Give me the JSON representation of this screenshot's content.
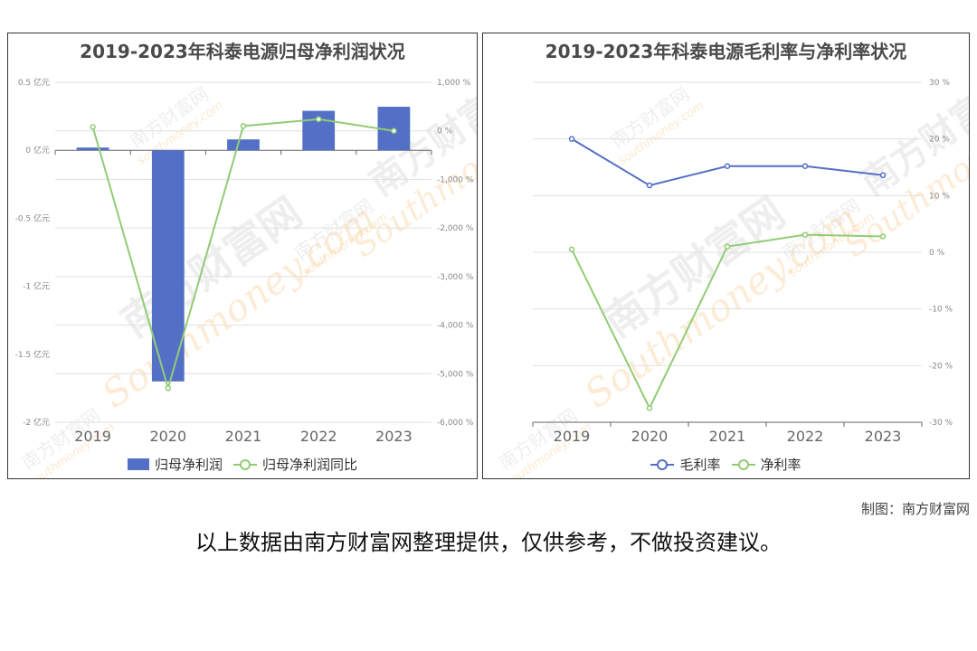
{
  "charts": [
    {
      "title": "2019-2023年科泰电源归母净利润状况",
      "legend": [
        {
          "label": "归母净利润",
          "kind": "bar",
          "color": "#5470c6"
        },
        {
          "label": "归母净利润同比",
          "kind": "line",
          "color": "#91cc75"
        }
      ]
    },
    {
      "title": "2019-2023年科泰电源毛利率与净利率状况",
      "legend": [
        {
          "label": "毛利率",
          "kind": "line",
          "color": "#5470c6"
        },
        {
          "label": "净利率",
          "kind": "line",
          "color": "#91cc75"
        }
      ]
    }
  ],
  "chart_data": [
    {
      "type": "bar",
      "title": "2019-2023年科泰电源归母净利润状况",
      "categories": [
        "2019",
        "2020",
        "2021",
        "2022",
        "2023"
      ],
      "series": [
        {
          "name": "归母净利润",
          "type": "bar",
          "axis": "left",
          "color": "#5470c6",
          "values": [
            0.02,
            -1.7,
            0.08,
            0.29,
            0.32
          ]
        },
        {
          "name": "归母净利润同比",
          "type": "line",
          "axis": "right",
          "color": "#91cc75",
          "values": [
            80,
            -5300,
            100,
            240,
            0
          ]
        }
      ],
      "y_left": {
        "min": -2,
        "max": 0.5,
        "ticks": [
          0.5,
          0,
          -0.5,
          -1,
          -1.5,
          -2
        ],
        "tick_labels": [
          "0.5 亿元",
          "0 亿元",
          "-0.5 亿元",
          "-1 亿元",
          "-1.5 亿元",
          "-2 亿元"
        ]
      },
      "y_right": {
        "min": -6000,
        "max": 1000,
        "ticks": [
          1000,
          0,
          -1000,
          -2000,
          -3000,
          -4000,
          -5000,
          -6000
        ],
        "tick_labels": [
          "1,000 %",
          "0 %",
          "-1,000 %",
          "-2,000 %",
          "-3,000 %",
          "-4,000 %",
          "-5,000 %",
          "-6,000 %"
        ]
      },
      "grid": true,
      "legend_position": "bottom"
    },
    {
      "type": "line",
      "title": "2019-2023年科泰电源毛利率与净利率状况",
      "categories": [
        "2019",
        "2020",
        "2021",
        "2022",
        "2023"
      ],
      "series": [
        {
          "name": "毛利率",
          "color": "#5470c6",
          "values": [
            20,
            11.8,
            15.2,
            15.2,
            13.6
          ]
        },
        {
          "name": "净利率",
          "color": "#91cc75",
          "values": [
            0.5,
            -27.5,
            1.0,
            3.1,
            2.8
          ]
        }
      ],
      "y_right": {
        "min": -30,
        "max": 30,
        "ticks": [
          30,
          20,
          10,
          0,
          -10,
          -20,
          -30
        ],
        "tick_labels": [
          "30 %",
          "20 %",
          "10 %",
          "0 %",
          "-10 %",
          "-20 %",
          "-30 %"
        ]
      },
      "grid": true,
      "legend_position": "bottom"
    }
  ],
  "footer": {
    "credit": "制图：南方财富网",
    "note": "以上数据由南方财富网整理提供，仅供参考，不做投资建议。"
  },
  "watermark": {
    "big": "南方财富网",
    "latin": "Southmoney.com",
    "small": "南方财富网",
    "small_latin": "southmoney.com"
  }
}
